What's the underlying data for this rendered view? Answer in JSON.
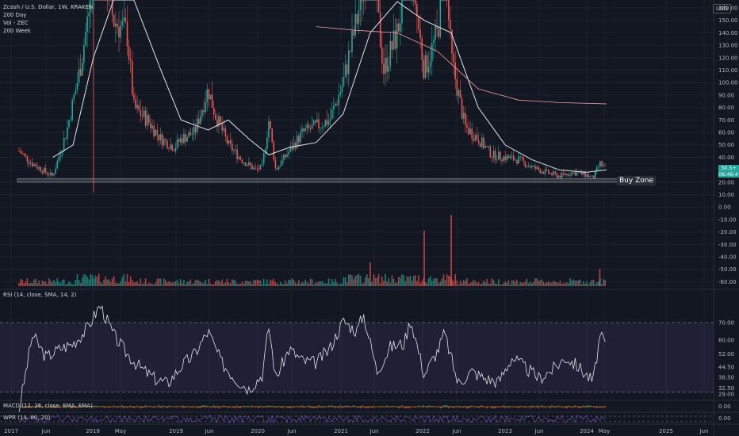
{
  "legend": {
    "symbol": "Zcash / U.S. Dollar, 1W, KRAKEN",
    "ma1": "200 Day",
    "vol": "Vol - ZEC",
    "ma2": "200 Week"
  },
  "currency": "USD",
  "buy_zone_label": "Buy Zone",
  "last_price": "30.5+",
  "countdown": "06:46:47",
  "rsi_title": "RSI (14, close, SMA, 14, 2)",
  "macd_title": "MACD (12, 26, close, EMA, EMA)",
  "wpr_title": "WPR (14, 80, 20)",
  "colors": {
    "up": "#26a69a",
    "down": "#ef5350",
    "bg": "#131722",
    "rsi_band": "#7e57c2"
  },
  "chart_data": [
    {
      "type": "candlestick",
      "pane": "price",
      "x_ticks": [
        "2017",
        "Jun",
        "2018",
        "May",
        "2019",
        "Jun",
        "2020",
        "Jun",
        "2021",
        "Jun",
        "2022",
        "Jun",
        "2023",
        "Jun",
        "2024",
        "May",
        "2025",
        "Jun"
      ],
      "y_ticks": [
        160.0,
        150.0,
        140.0,
        130.0,
        120.0,
        110.0,
        100.0,
        90.0,
        80.0,
        70.0,
        60.0,
        50.0,
        40.0,
        30.0,
        20.0,
        10.0,
        0.0,
        -10.0,
        -20.0,
        -30.0,
        -40.0,
        -50.0,
        -60.0
      ],
      "close_path": [
        [
          "2017-01",
          45
        ],
        [
          "2017-03",
          35
        ],
        [
          "2017-05",
          28
        ],
        [
          "2017-06",
          25
        ],
        [
          "2017-08",
          60
        ],
        [
          "2017-10",
          110
        ],
        [
          "2017-12",
          180
        ],
        [
          "2018-01",
          200
        ],
        [
          "2018-03",
          150
        ],
        [
          "2018-05",
          140
        ],
        [
          "2018-06",
          80
        ],
        [
          "2018-08",
          70
        ],
        [
          "2018-10",
          55
        ],
        [
          "2018-12",
          48
        ],
        [
          "2019-01",
          55
        ],
        [
          "2019-03",
          60
        ],
        [
          "2019-05",
          95
        ],
        [
          "2019-06",
          75
        ],
        [
          "2019-08",
          50
        ],
        [
          "2019-10",
          38
        ],
        [
          "2019-12",
          30
        ],
        [
          "2020-01",
          32
        ],
        [
          "2020-02",
          70
        ],
        [
          "2020-03",
          30
        ],
        [
          "2020-05",
          45
        ],
        [
          "2020-07",
          60
        ],
        [
          "2020-09",
          65
        ],
        [
          "2020-11",
          70
        ],
        [
          "2021-01",
          100
        ],
        [
          "2021-03",
          150
        ],
        [
          "2021-05",
          210
        ],
        [
          "2021-07",
          110
        ],
        [
          "2021-09",
          140
        ],
        [
          "2021-11",
          200
        ],
        [
          "2021-12",
          150
        ],
        [
          "2022-01",
          110
        ],
        [
          "2022-03",
          140
        ],
        [
          "2022-04",
          200
        ],
        [
          "2022-05",
          120
        ],
        [
          "2022-07",
          65
        ],
        [
          "2022-09",
          55
        ],
        [
          "2022-11",
          42
        ],
        [
          "2023-01",
          40
        ],
        [
          "2023-03",
          38
        ],
        [
          "2023-05",
          32
        ],
        [
          "2023-07",
          28
        ],
        [
          "2023-09",
          25
        ],
        [
          "2023-11",
          28
        ],
        [
          "2024-01",
          26
        ],
        [
          "2024-02",
          23
        ],
        [
          "2024-03",
          35
        ],
        [
          "2024-04",
          30.5
        ]
      ],
      "ma_200_day": [
        [
          "2017-06",
          40
        ],
        [
          "2017-09",
          50
        ],
        [
          "2017-12",
          120
        ],
        [
          "2018-03",
          210
        ],
        [
          "2018-06",
          190
        ],
        [
          "2018-10",
          110
        ],
        [
          "2019-01",
          70
        ],
        [
          "2019-05",
          62
        ],
        [
          "2019-08",
          70
        ],
        [
          "2019-11",
          55
        ],
        [
          "2020-02",
          42
        ],
        [
          "2020-05",
          48
        ],
        [
          "2020-09",
          52
        ],
        [
          "2021-01",
          75
        ],
        [
          "2021-05",
          140
        ],
        [
          "2021-09",
          165
        ],
        [
          "2022-01",
          150
        ],
        [
          "2022-05",
          140
        ],
        [
          "2022-09",
          80
        ],
        [
          "2023-01",
          50
        ],
        [
          "2023-05",
          38
        ],
        [
          "2023-09",
          30
        ],
        [
          "2024-01",
          28
        ],
        [
          "2024-04",
          30
        ]
      ],
      "ma_200_week": [
        [
          "2020-09",
          145
        ],
        [
          "2021-03",
          142
        ],
        [
          "2021-09",
          140
        ],
        [
          "2022-03",
          125
        ],
        [
          "2022-09",
          95
        ],
        [
          "2023-03",
          86
        ],
        [
          "2023-09",
          84
        ],
        [
          "2024-04",
          83
        ]
      ],
      "buy_zone": [
        20,
        23
      ]
    },
    {
      "type": "bar",
      "pane": "volume",
      "name": "Vol - ZEC",
      "note": "relative volume histogram, largest spikes around 2022-01 and 2022-05"
    },
    {
      "type": "line",
      "pane": "rsi",
      "name": "RSI (14, close, SMA, 14, 2)",
      "y_ticks": [
        70.0,
        60.0,
        52.0,
        44.5,
        38.5,
        32.5,
        29.0
      ],
      "band": [
        30,
        70
      ],
      "values": [
        [
          "2017-01",
          20
        ],
        [
          "2017-03",
          63
        ],
        [
          "2017-05",
          50
        ],
        [
          "2017-07",
          55
        ],
        [
          "2017-09",
          58
        ],
        [
          "2017-11",
          66
        ],
        [
          "2018-01",
          80
        ],
        [
          "2018-03",
          63
        ],
        [
          "2018-05",
          52
        ],
        [
          "2018-07",
          44
        ],
        [
          "2018-09",
          38
        ],
        [
          "2018-11",
          35
        ],
        [
          "2019-01",
          45
        ],
        [
          "2019-03",
          52
        ],
        [
          "2019-05",
          65
        ],
        [
          "2019-07",
          47
        ],
        [
          "2019-09",
          38
        ],
        [
          "2019-11",
          32
        ],
        [
          "2020-01",
          40
        ],
        [
          "2020-02",
          68
        ],
        [
          "2020-03",
          38
        ],
        [
          "2020-05",
          55
        ],
        [
          "2020-07",
          48
        ],
        [
          "2020-09",
          47
        ],
        [
          "2020-11",
          55
        ],
        [
          "2021-01",
          71
        ],
        [
          "2021-03",
          65
        ],
        [
          "2021-04",
          75
        ],
        [
          "2021-06",
          42
        ],
        [
          "2021-08",
          56
        ],
        [
          "2021-10",
          58
        ],
        [
          "2021-11",
          72
        ],
        [
          "2022-01",
          40
        ],
        [
          "2022-03",
          54
        ],
        [
          "2022-04",
          64
        ],
        [
          "2022-06",
          35
        ],
        [
          "2022-08",
          42
        ],
        [
          "2022-10",
          38
        ],
        [
          "2022-12",
          36
        ],
        [
          "2023-02",
          50
        ],
        [
          "2023-04",
          44
        ],
        [
          "2023-06",
          38
        ],
        [
          "2023-08",
          43
        ],
        [
          "2023-10",
          50
        ],
        [
          "2023-12",
          44
        ],
        [
          "2024-02",
          36
        ],
        [
          "2024-03",
          62
        ],
        [
          "2024-04",
          57
        ]
      ]
    },
    {
      "type": "histogram",
      "pane": "macd",
      "name": "MACD (12, 26, close, EMA, EMA)",
      "y_ticks": [
        0.0,
        -0.0
      ]
    },
    {
      "type": "line",
      "pane": "wpr",
      "name": "WPR (14, 80, 20)"
    }
  ]
}
